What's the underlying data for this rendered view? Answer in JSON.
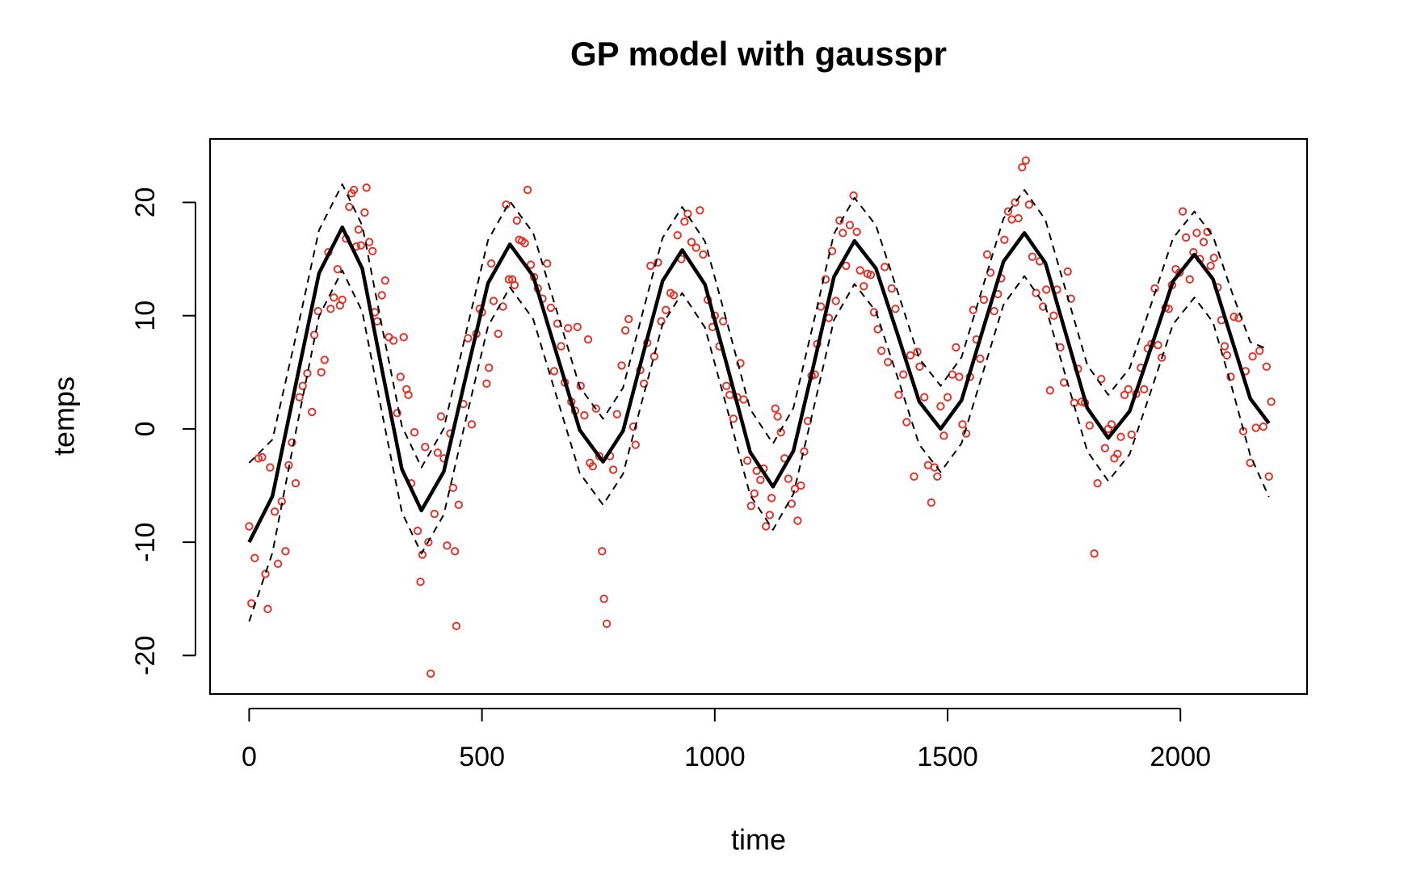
{
  "chart_data": {
    "type": "scatter",
    "title": "GP model with gausspr",
    "x_label": "time",
    "y_label": "temps",
    "xlim": [
      -84,
      2272
    ],
    "ylim": [
      -23.4,
      25.6
    ],
    "xticks": [
      0,
      500,
      1000,
      1500,
      2000
    ],
    "yticks": [
      -20,
      -10,
      0,
      10,
      20
    ],
    "series": [
      {
        "type": "scatter",
        "color": "#e0352b",
        "x": [
          0,
          5,
          12,
          20,
          28,
          35,
          40,
          45,
          55,
          62,
          70,
          78,
          85,
          92,
          100,
          108,
          115,
          125,
          135,
          140,
          148,
          155,
          162,
          170,
          175,
          182,
          190,
          195,
          200,
          208,
          215,
          220,
          225,
          230,
          235,
          240,
          248,
          252,
          258,
          265,
          270,
          275,
          285,
          292,
          300,
          310,
          318,
          325,
          332,
          338,
          342,
          348,
          355,
          362,
          368,
          372,
          378,
          385,
          390,
          398,
          405,
          412,
          418,
          425,
          432,
          438,
          442,
          445,
          450,
          460,
          470,
          478,
          488,
          495,
          500,
          510,
          515,
          520,
          525,
          535,
          545,
          552,
          558,
          565,
          570,
          575,
          580,
          586,
          592,
          598,
          605,
          612,
          620,
          630,
          640,
          648,
          655,
          662,
          670,
          678,
          685,
          692,
          700,
          705,
          712,
          720,
          728,
          732,
          738,
          745,
          752,
          758,
          762,
          768,
          775,
          782,
          790,
          800,
          808,
          815,
          825,
          830,
          840,
          848,
          855,
          862,
          870,
          878,
          885,
          895,
          905,
          912,
          920,
          928,
          935,
          942,
          950,
          960,
          968,
          975,
          985,
          995,
          1000,
          1010,
          1018,
          1025,
          1032,
          1040,
          1048,
          1055,
          1062,
          1070,
          1078,
          1085,
          1090,
          1098,
          1105,
          1110,
          1118,
          1122,
          1130,
          1135,
          1142,
          1150,
          1158,
          1165,
          1172,
          1178,
          1185,
          1192,
          1200,
          1208,
          1215,
          1220,
          1228,
          1238,
          1245,
          1252,
          1260,
          1268,
          1275,
          1282,
          1290,
          1298,
          1305,
          1312,
          1320,
          1328,
          1335,
          1342,
          1350,
          1358,
          1365,
          1372,
          1380,
          1388,
          1395,
          1405,
          1412,
          1420,
          1428,
          1435,
          1440,
          1450,
          1458,
          1465,
          1472,
          1478,
          1485,
          1492,
          1500,
          1510,
          1518,
          1525,
          1532,
          1540,
          1548,
          1555,
          1562,
          1570,
          1578,
          1585,
          1592,
          1600,
          1608,
          1615,
          1622,
          1630,
          1638,
          1645,
          1652,
          1660,
          1668,
          1675,
          1682,
          1690,
          1698,
          1705,
          1712,
          1720,
          1728,
          1735,
          1742,
          1750,
          1758,
          1765,
          1772,
          1780,
          1788,
          1795,
          1805,
          1815,
          1822,
          1830,
          1838,
          1845,
          1852,
          1858,
          1865,
          1872,
          1880,
          1888,
          1895,
          1905,
          1915,
          1922,
          1930,
          1938,
          1945,
          1952,
          1960,
          1968,
          1975,
          1982,
          1990,
          1998,
          2005,
          2012,
          2020,
          2028,
          2035,
          2042,
          2050,
          2058,
          2065,
          2072,
          2080,
          2088,
          2095,
          2100,
          2108,
          2115,
          2125,
          2135,
          2140,
          2150,
          2155,
          2162,
          2170,
          2178,
          2185,
          2190,
          2195
        ],
        "values": [
          -8.6,
          -15.4,
          -11.4,
          -2.6,
          -2.5,
          -12.8,
          -15.9,
          -3.4,
          -7.3,
          -11.9,
          -6.4,
          -10.8,
          -3.2,
          -1.2,
          -4.8,
          2.8,
          3.8,
          4.9,
          1.5,
          8.3,
          10.4,
          5.0,
          6.1,
          15.6,
          10.6,
          11.6,
          14.1,
          10.9,
          11.4,
          16.8,
          19.6,
          20.8,
          21.1,
          16.1,
          17.6,
          16.2,
          19.1,
          21.3,
          16.5,
          15.7,
          10.3,
          9.5,
          11.8,
          13.1,
          8.1,
          7.8,
          1.4,
          4.6,
          8.1,
          3.5,
          3.0,
          -4.8,
          -0.3,
          -9.0,
          -13.5,
          -11.1,
          -1.6,
          -10.0,
          -21.6,
          -7.5,
          -2.1,
          1.1,
          -2.6,
          -10.3,
          -0.4,
          -5.2,
          -10.8,
          -17.4,
          -6.7,
          2.2,
          8.0,
          0.4,
          8.4,
          10.6,
          10.3,
          4.0,
          5.4,
          14.6,
          11.3,
          8.4,
          10.8,
          19.8,
          13.2,
          13.2,
          12.7,
          18.4,
          16.7,
          16.6,
          16.4,
          21.1,
          14.5,
          13.4,
          12.4,
          11.5,
          14.6,
          10.7,
          5.1,
          9.3,
          7.3,
          4.1,
          8.9,
          2.4,
          1.6,
          9.0,
          3.8,
          1.2,
          7.9,
          -3.0,
          -3.3,
          1.8,
          -2.4,
          -10.8,
          -15.0,
          -17.2,
          -2.4,
          -3.6,
          1.3,
          5.6,
          8.7,
          9.7,
          0.2,
          -1.4,
          5.2,
          4.0,
          7.6,
          14.4,
          6.4,
          14.7,
          9.5,
          10.5,
          12.0,
          11.8,
          17.1,
          15.0,
          18.3,
          19.0,
          16.5,
          16.0,
          19.3,
          15.4,
          11.4,
          9.0,
          10.0,
          7.3,
          9.5,
          3.8,
          3.0,
          0.9,
          2.8,
          5.8,
          2.6,
          -2.8,
          -6.8,
          -5.7,
          -3.7,
          -4.5,
          -3.5,
          -8.6,
          -7.6,
          -6.1,
          1.8,
          1.1,
          -0.3,
          -2.6,
          -4.4,
          -6.6,
          -5.3,
          -8.1,
          -5.0,
          -2.0,
          0.7,
          4.7,
          4.8,
          7.5,
          10.8,
          13.2,
          9.8,
          15.7,
          11.3,
          18.4,
          17.3,
          14.4,
          18.0,
          20.6,
          17.4,
          14.0,
          12.6,
          13.7,
          13.6,
          10.3,
          8.8,
          6.9,
          14.3,
          5.9,
          12.4,
          10.6,
          3.0,
          4.8,
          0.6,
          6.5,
          -4.2,
          6.8,
          5.5,
          2.8,
          -3.2,
          -6.5,
          -3.4,
          -4.2,
          2.0,
          -0.6,
          2.8,
          4.8,
          7.2,
          4.6,
          0.4,
          -0.4,
          4.6,
          10.5,
          7.9,
          6.2,
          11.4,
          15.4,
          13.8,
          10.4,
          11.9,
          13.3,
          16.7,
          19.2,
          18.5,
          20.0,
          18.6,
          23.1,
          23.7,
          19.8,
          15.2,
          12.0,
          14.8,
          10.8,
          12.3,
          3.4,
          10.0,
          12.3,
          7.2,
          4.1,
          13.9,
          11.5,
          2.3,
          5.3,
          2.4,
          2.3,
          0.3,
          -11.0,
          -4.8,
          4.4,
          -1.7,
          0.0,
          0.4,
          -2.6,
          -2.2,
          -0.7,
          3.0,
          3.5,
          -0.5,
          3.1,
          5.4,
          3.5,
          7.1,
          7.5,
          12.4,
          7.4,
          6.3,
          10.7,
          10.6,
          12.7,
          14.1,
          13.8,
          19.2,
          16.9,
          13.2,
          15.6,
          17.3,
          15.0,
          16.5,
          17.4,
          14.4,
          15.1,
          12.5,
          9.6,
          7.3,
          6.5,
          4.6,
          9.9,
          9.8,
          -0.2,
          5.1,
          -3.0,
          6.4,
          0.1,
          6.9,
          0.2,
          5.5,
          -4.2,
          2.4
        ]
      },
      {
        "type": "line",
        "color": "#000000",
        "dash": false,
        "x": [
          0,
          50,
          100,
          150,
          200,
          243,
          285,
          328,
          370,
          418,
          465,
          513,
          560,
          610,
          660,
          710,
          760,
          803,
          845,
          888,
          930,
          979,
          1028,
          1076,
          1125,
          1169,
          1213,
          1256,
          1300,
          1346,
          1393,
          1439,
          1485,
          1530,
          1575,
          1620,
          1665,
          1710,
          1755,
          1800,
          1845,
          1891,
          1938,
          1984,
          2030,
          2070,
          2110,
          2150,
          2190
        ],
        "values": [
          -10,
          -5.94,
          3.9,
          13.74,
          17.8,
          14.15,
          5.3,
          -3.55,
          -7.2,
          -3.77,
          4.55,
          12.87,
          16.3,
          13.5,
          6.7,
          -0.1,
          -2.9,
          -0.17,
          6.45,
          13.07,
          15.8,
          12.75,
          5.35,
          -2.05,
          -5.1,
          -1.93,
          5.75,
          13.43,
          16.6,
          14.18,
          8.3,
          2.42,
          0,
          2.53,
          8.65,
          14.77,
          17.3,
          14.66,
          8.25,
          1.84,
          -0.8,
          1.57,
          7.3,
          13.03,
          15.4,
          13.22,
          7.95,
          2.68,
          0.5
        ]
      },
      {
        "type": "line",
        "color": "#000000",
        "dash": true,
        "x": [
          0,
          50,
          100,
          150,
          200,
          243,
          285,
          328,
          370,
          418,
          465,
          513,
          560,
          610,
          660,
          710,
          760,
          803,
          845,
          888,
          930,
          979,
          1028,
          1076,
          1125,
          1169,
          1213,
          1256,
          1300,
          1346,
          1393,
          1439,
          1485,
          1530,
          1575,
          1620,
          1665,
          1710,
          1755,
          1800,
          1845,
          1891,
          1938,
          1984,
          2030,
          2070,
          2110,
          2150,
          2190
        ],
        "values": [
          -3,
          -0.94,
          8.1,
          17.54,
          21.6,
          17.95,
          9.1,
          0.25,
          -3.4,
          0.03,
          8.35,
          16.67,
          20.1,
          17.3,
          10.5,
          3.7,
          0.9,
          3.63,
          10.25,
          16.87,
          19.6,
          16.55,
          9.15,
          1.75,
          -1.3,
          1.87,
          9.55,
          17.23,
          20.4,
          17.98,
          12.1,
          6.22,
          3.8,
          6.33,
          12.45,
          18.57,
          21.1,
          18.46,
          12.05,
          5.64,
          3,
          5.37,
          11.1,
          16.83,
          19.2,
          17.02,
          12.15,
          7.68,
          7
        ]
      },
      {
        "type": "line",
        "color": "#000000",
        "dash": true,
        "x": [
          0,
          50,
          100,
          150,
          200,
          243,
          285,
          328,
          370,
          418,
          465,
          513,
          560,
          610,
          660,
          710,
          760,
          803,
          845,
          888,
          930,
          979,
          1028,
          1076,
          1125,
          1169,
          1213,
          1256,
          1300,
          1346,
          1393,
          1439,
          1485,
          1530,
          1575,
          1620,
          1665,
          1710,
          1755,
          1800,
          1845,
          1891,
          1938,
          1984,
          2030,
          2070,
          2110,
          2150,
          2190
        ],
        "values": [
          -17,
          -10.94,
          -0.3,
          9.94,
          14,
          10.35,
          1.5,
          -7.35,
          -11,
          -7.57,
          0.75,
          9.07,
          12.5,
          9.7,
          2.9,
          -3.9,
          -6.7,
          -3.97,
          2.65,
          9.27,
          12,
          8.95,
          1.55,
          -5.85,
          -8.9,
          -5.73,
          1.95,
          9.63,
          12.8,
          10.38,
          4.5,
          -1.38,
          -3.8,
          -1.27,
          4.85,
          10.97,
          13.5,
          10.86,
          4.45,
          -1.96,
          -4.6,
          -2.23,
          3.5,
          9.23,
          11.6,
          9.42,
          3.75,
          -2.32,
          -6
        ]
      }
    ]
  }
}
